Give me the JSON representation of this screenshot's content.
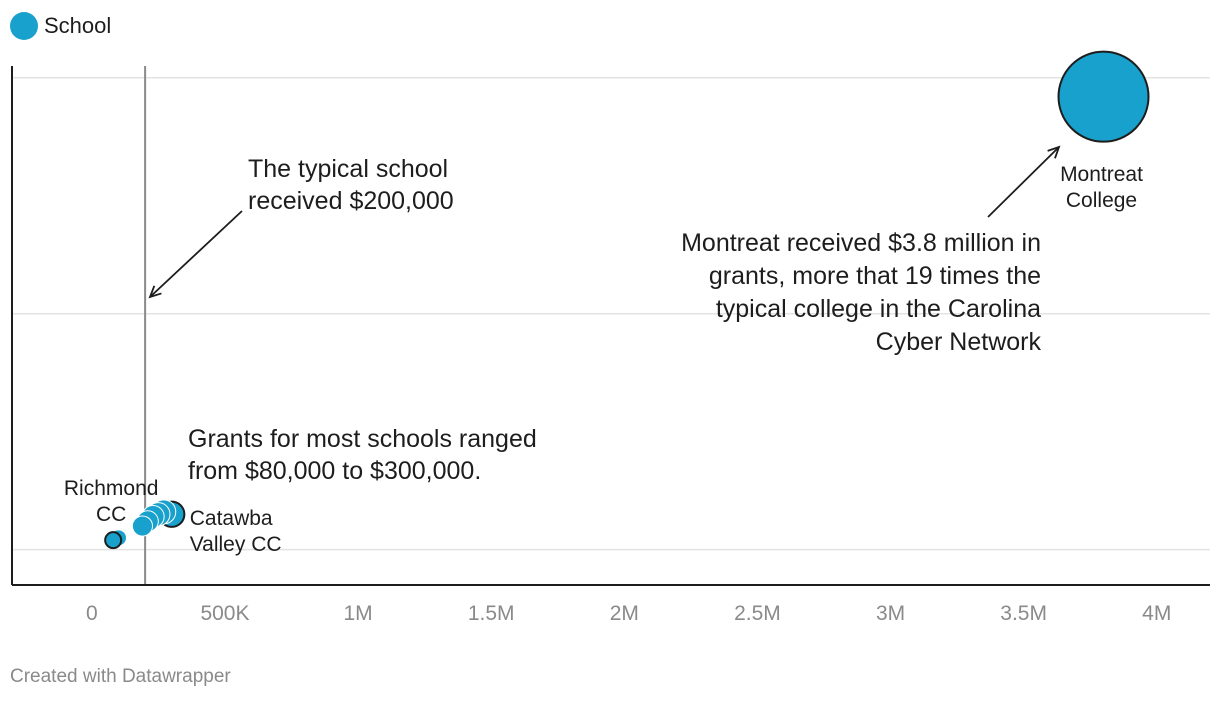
{
  "legend": {
    "label": "School",
    "color": "#18a1cd"
  },
  "footer": "Created with Datawrapper",
  "chart_data": {
    "type": "scatter",
    "title": "",
    "xlabel": "",
    "ylabel": "",
    "xlim": [
      -300000,
      4200000
    ],
    "ylim": [
      -0.15,
      2.05
    ],
    "grid": {
      "x": false,
      "y": true,
      "y_values": [
        0,
        1,
        2
      ]
    },
    "x_ticks": [
      {
        "value": 0,
        "label": "0"
      },
      {
        "value": 500000,
        "label": "500K"
      },
      {
        "value": 1000000,
        "label": "1M"
      },
      {
        "value": 1500000,
        "label": "1.5M"
      },
      {
        "value": 2000000,
        "label": "2M"
      },
      {
        "value": 2500000,
        "label": "2.5M"
      },
      {
        "value": 3000000,
        "label": "3M"
      },
      {
        "value": 3500000,
        "label": "3.5M"
      },
      {
        "value": 4000000,
        "label": "4M"
      }
    ],
    "reference_line": {
      "x": 200000
    },
    "series": [
      {
        "color": "#18a1cd",
        "points": [
          {
            "x": 80000,
            "y": 0.04,
            "highlight": true
          },
          {
            "x": 100000,
            "y": 0.05
          },
          {
            "x": 190000,
            "y": 0.1
          },
          {
            "x": 210000,
            "y": 0.12
          },
          {
            "x": 230000,
            "y": 0.14
          },
          {
            "x": 250000,
            "y": 0.15
          },
          {
            "x": 270000,
            "y": 0.16
          },
          {
            "x": 300000,
            "y": 0.15,
            "highlight": true
          },
          {
            "x": 3800000,
            "y": 1.92,
            "highlight": true
          }
        ]
      }
    ],
    "point_labels": [
      {
        "x": 80000,
        "y": 0.04,
        "lines": [
          "Richmond",
          "CC"
        ]
      },
      {
        "x": 300000,
        "y": 0.15,
        "lines": [
          "Catawba",
          "Valley CC"
        ]
      },
      {
        "x": 3800000,
        "y": 1.92,
        "lines": [
          "Montreat",
          "College"
        ]
      }
    ],
    "annotations": [
      {
        "lines": [
          "The typical school",
          "received $200,000"
        ]
      },
      {
        "lines": [
          "Montreat received $3.8 million in",
          "grants, more that 19 times the",
          "typical college in the Carolina",
          "Cyber Network"
        ]
      },
      {
        "lines": [
          "Grants for most schools ranged",
          "from $80,000 to $300,000."
        ]
      }
    ]
  }
}
